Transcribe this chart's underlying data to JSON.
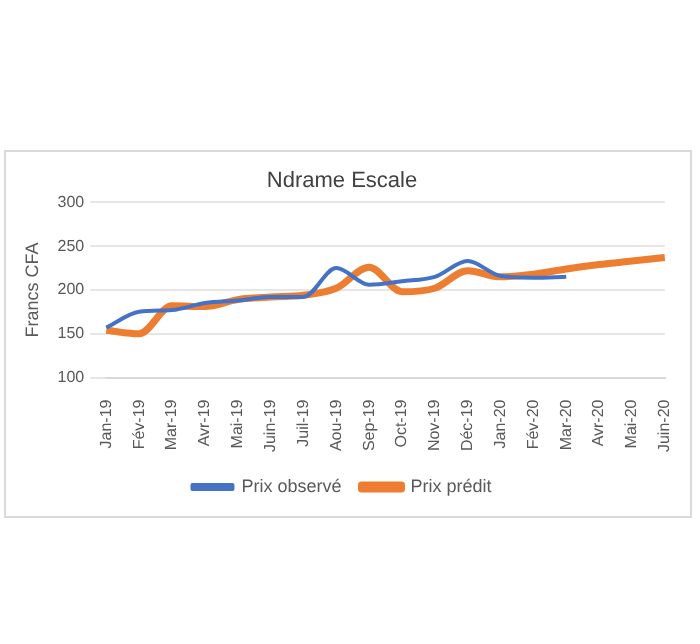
{
  "chart_data": {
    "type": "line",
    "title": "Ndrame Escale",
    "ylabel": "Francs CFA",
    "categories": [
      "Jan-19",
      "Fév-19",
      "Mar-19",
      "Avr-19",
      "Mai-19",
      "Juin-19",
      "Juil-19",
      "Aou-19",
      "Sep-19",
      "Oct-19",
      "Nov-19",
      "Déc-19",
      "Jan-20",
      "Fév-20",
      "Mar-20",
      "Avr-20",
      "Mai-20",
      "Juin-20"
    ],
    "series": [
      {
        "name": "Prix observé",
        "color": "#4472c4",
        "values": [
          157,
          175,
          177,
          185,
          188,
          192,
          192,
          225,
          206,
          210,
          215,
          233,
          216,
          214,
          215,
          null,
          null,
          null
        ]
      },
      {
        "name": "Prix prédit",
        "color": "#ed7d31",
        "values": [
          154,
          150,
          182,
          181,
          189,
          192,
          194,
          202,
          226,
          198,
          202,
          222,
          215,
          218,
          224,
          229,
          233,
          237
        ]
      }
    ],
    "ylim": [
      100,
      300
    ],
    "yticks": [
      100,
      150,
      200,
      250,
      300
    ],
    "grid": "y",
    "legend": "bottom",
    "marker": "none",
    "line_style": "solid"
  }
}
